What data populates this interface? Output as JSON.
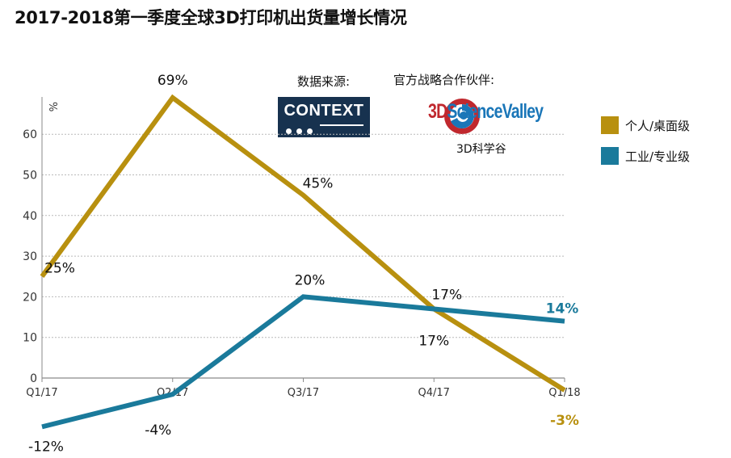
{
  "title": "2017-2018第一季度全球3D打印机出货量增长情况",
  "source_label": "数据来源:",
  "partner_label": "官方战略合作伙伴:",
  "context_logo_text": "CONTEXT",
  "partner_logo_text_3d": "3D",
  "partner_logo_text_rest": "ScienceValley",
  "partner_sub_text": "3D科学谷",
  "colors": {
    "personal": "#b8900f",
    "industrial": "#1a7a9b",
    "grid": "#b9b9b9",
    "axis": "#8a8a8a"
  },
  "chart_data": {
    "type": "line",
    "title": "2017-2018第一季度全球3D打印机出货量增长情况",
    "ylabel": "%",
    "xlabel": "",
    "categories": [
      "Q1/17",
      "Q2/17",
      "Q3/17",
      "Q4/17",
      "Q1/18"
    ],
    "ylim": [
      -12,
      70
    ],
    "yticks": [
      0,
      10,
      20,
      30,
      40,
      50,
      60
    ],
    "grid": true,
    "legend": "right",
    "series": [
      {
        "name": "个人/桌面级",
        "color": "#b8900f",
        "values": [
          25,
          69,
          45,
          17,
          -3
        ],
        "labels": [
          "25%",
          "69%",
          "45%",
          "17%",
          "-3%"
        ]
      },
      {
        "name": "工业/专业级",
        "color": "#1a7a9b",
        "values": [
          -12,
          -4,
          20,
          17,
          14
        ],
        "labels": [
          "-12%",
          "-4%",
          "20%",
          "17%",
          "14%"
        ]
      }
    ]
  }
}
